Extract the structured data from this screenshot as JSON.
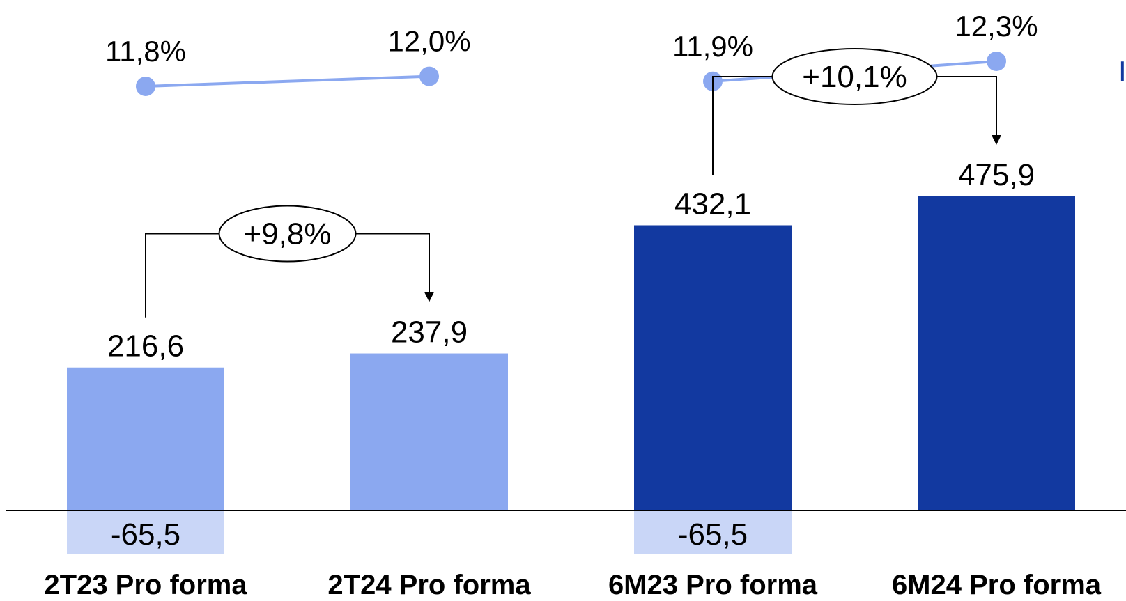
{
  "chart_data": {
    "type": "bar",
    "title": "",
    "xlabel": "",
    "ylabel": "",
    "ylim": [
      -65.5,
      475.9
    ],
    "grid": false,
    "categories": [
      "2T23 Pro forma",
      "2T24 Pro forma",
      "6M23 Pro forma",
      "6M24 Pro forma"
    ],
    "series": [
      {
        "values": [
          216.6,
          237.9,
          432.1,
          475.9
        ],
        "labels": [
          "216,6",
          "237,9",
          "432,1",
          "475,9"
        ],
        "colors": [
          "#8BA8F0",
          "#8BA8F0",
          "#1239A0",
          "#1239A0"
        ]
      },
      {
        "values": [
          -65.5,
          null,
          -65.5,
          null
        ],
        "labels": [
          "-65,5",
          "",
          "-65,5",
          ""
        ],
        "color": "#C9D6F7"
      }
    ],
    "margin_line": {
      "values": [
        11.8,
        12.0,
        11.9,
        12.3
      ],
      "labels": [
        "11,8%",
        "12,0%",
        "11,9%",
        "12,3%"
      ],
      "color": "#8BA8F0"
    },
    "growth_annotations": [
      {
        "from": 0,
        "to": 1,
        "label": "+9,8%"
      },
      {
        "from": 2,
        "to": 3,
        "label": "+10,1%"
      }
    ],
    "edge_label": "I"
  }
}
